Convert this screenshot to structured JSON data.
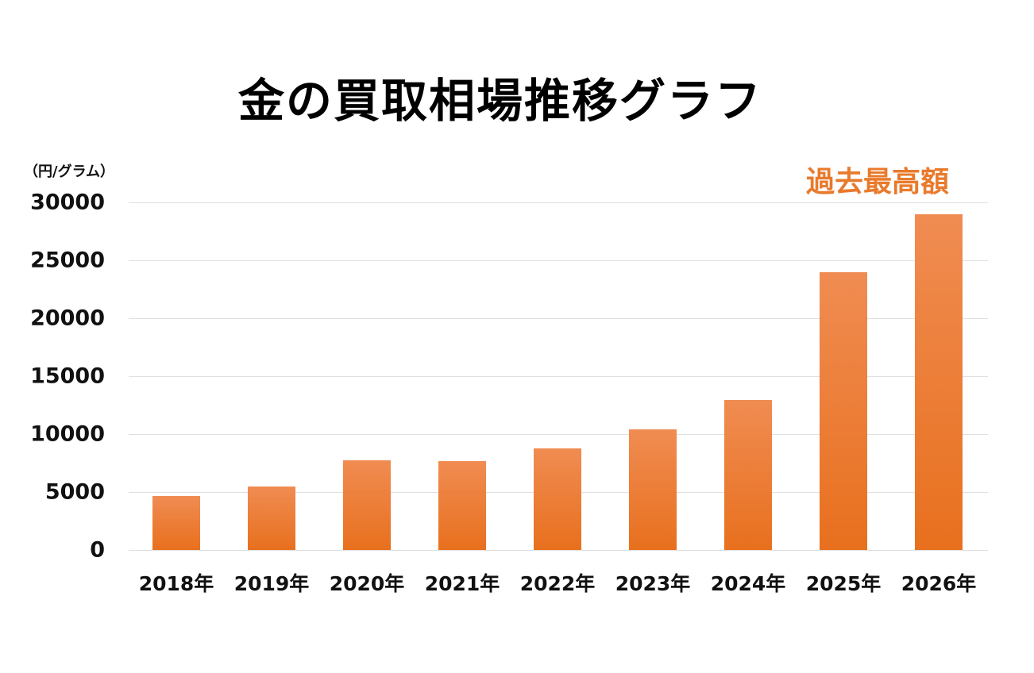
{
  "chart_data": {
    "type": "bar",
    "title": "金の買取相場推移グラフ",
    "xlabel": "",
    "ylabel": "（円/グラム）",
    "ylim": [
      0,
      30000
    ],
    "yticks": [
      0,
      5000,
      10000,
      15000,
      20000,
      25000,
      30000
    ],
    "grid": true,
    "legend": null,
    "categories": [
      "2018年",
      "2019年",
      "2020年",
      "2021年",
      "2022年",
      "2023年",
      "2024年",
      "2025年",
      "2026年"
    ],
    "values": [
      4650,
      5480,
      7740,
      7670,
      8770,
      10410,
      12950,
      23970,
      28970
    ],
    "annotations": [
      {
        "text": "過去最高額",
        "target": "2026年"
      }
    ]
  },
  "labels": {
    "title": "金の買取相場推移グラフ",
    "unit": "（円/グラム）",
    "annotation": "過去最高額"
  },
  "colors": {
    "bar_top": "#f08c52",
    "bar_bottom": "#e8701e",
    "annotation": "#e87a2c",
    "grid": "#e0e0e0",
    "text": "#111111"
  }
}
